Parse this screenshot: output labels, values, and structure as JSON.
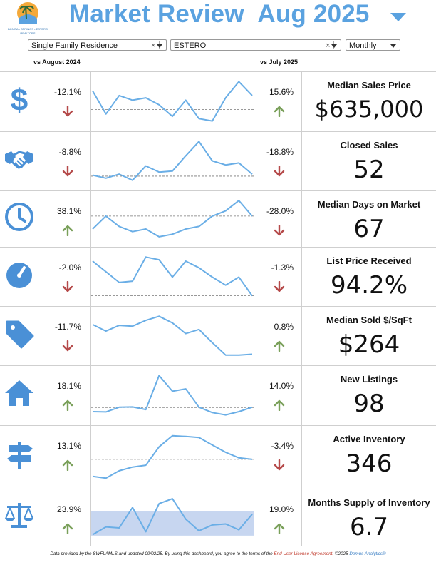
{
  "header": {
    "title": "Market Review",
    "period": "Aug 2025",
    "logo_tagline": "BONITA • SPRINGS • ESTERO",
    "logo_sub": "REALTORS"
  },
  "filters": {
    "property_type": "Single Family Residence",
    "area": "ESTERO",
    "interval": "Monthly",
    "clear_glyph": "×"
  },
  "columns": {
    "yoy_label": "vs August 2024",
    "mom_label": "vs July 2025"
  },
  "colors": {
    "accent": "#5aa2e0",
    "icon": "#4a90d6",
    "line": "#6aaee6",
    "up": "#7aa05a",
    "down": "#b54a4a",
    "band": "#c7d6f0"
  },
  "metrics": [
    {
      "label": "Median Sales Price",
      "value": "$635,000",
      "icon": "dollar-icon",
      "yoy": "-12.1%",
      "yoy_dir": "down",
      "mom": "15.6%",
      "mom_dir": "up",
      "trend": [
        70,
        60,
        68,
        66,
        67,
        64,
        59,
        66,
        58,
        57,
        67,
        74,
        68
      ],
      "ref": 62
    },
    {
      "label": "Closed Sales",
      "value": "52",
      "icon": "handshake-icon",
      "yoy": "-8.8%",
      "yoy_dir": "down",
      "mom": "-18.8%",
      "mom_dir": "down",
      "trend": [
        48,
        45,
        49,
        43,
        57,
        51,
        52,
        67,
        81,
        62,
        58,
        60,
        49
      ],
      "ref": 47
    },
    {
      "label": "Median Days on Market",
      "value": "67",
      "icon": "clock-icon",
      "yoy": "38.1%",
      "yoy_dir": "up",
      "mom": "-28.0%",
      "mom_dir": "down",
      "trend": [
        60,
        70,
        62,
        58,
        60,
        54,
        56,
        60,
        62,
        70,
        74,
        82,
        70
      ],
      "ref": 70
    },
    {
      "label": "List Price Received",
      "value": "94.2%",
      "icon": "gauge-icon",
      "yoy": "-2.0%",
      "yoy_dir": "down",
      "mom": "-1.3%",
      "mom_dir": "down",
      "trend": [
        96.8,
        96.0,
        95.2,
        95.3,
        97.1,
        96.9,
        95.6,
        96.8,
        96.3,
        95.6,
        95.0,
        95.6,
        94.2
      ],
      "ref": 94.2
    },
    {
      "label": "Median Sold $/SqFt",
      "value": "$264",
      "icon": "price-tag-icon",
      "yoy": "-11.7%",
      "yoy_dir": "down",
      "mom": "0.8%",
      "mom_dir": "up",
      "trend": [
        300,
        292,
        299,
        298,
        305,
        310,
        302,
        289,
        294,
        278,
        263,
        263,
        264
      ],
      "ref": 263
    },
    {
      "label": "New Listings",
      "value": "98",
      "icon": "house-icon",
      "yoy": "18.1%",
      "yoy_dir": "up",
      "mom": "14.0%",
      "mom_dir": "up",
      "trend": [
        83,
        82,
        98,
        99,
        90,
        205,
        152,
        160,
        98,
        80,
        72,
        83,
        98
      ],
      "ref": 97
    },
    {
      "label": "Active Inventory",
      "value": "346",
      "icon": "signpost-icon",
      "yoy": "13.1%",
      "yoy_dir": "up",
      "mom": "-3.4%",
      "mom_dir": "down",
      "trend": [
        300,
        295,
        315,
        325,
        330,
        380,
        410,
        408,
        405,
        385,
        365,
        350,
        346
      ],
      "ref": 346
    },
    {
      "label": "Months Supply of Inventory",
      "value": "6.7",
      "icon": "scales-icon",
      "yoy": "23.9%",
      "yoy_dir": "up",
      "mom": "19.0%",
      "mom_dir": "up",
      "trend": [
        4.6,
        5.4,
        5.3,
        7.4,
        4.9,
        7.8,
        8.3,
        6.2,
        5.0,
        5.6,
        5.7,
        5.1,
        6.7
      ],
      "band": [
        4.5,
        7.0
      ]
    }
  ],
  "footer": {
    "text1": "Data provided by the SWFLAMLS and updated 09/02/25.  By using this dashboard, you agree to the terms of the ",
    "link": "End User License Agreement.",
    "text2": "  ©2025 ",
    "brand": "Domus Analytics®"
  }
}
